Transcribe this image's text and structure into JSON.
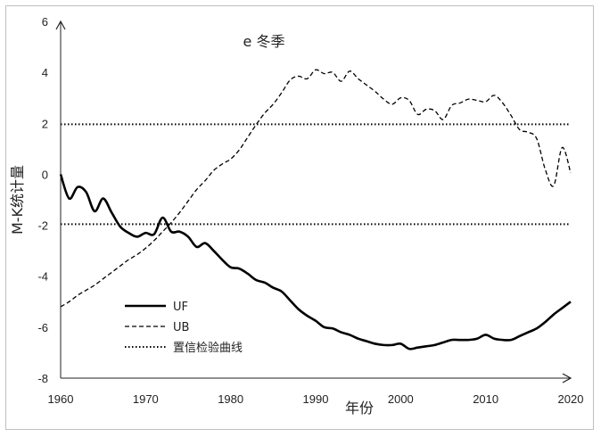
{
  "chart_data": {
    "type": "line",
    "title": "e 冬季",
    "xlabel": "年份",
    "ylabel": "M-K统计量",
    "xlim": [
      1960,
      2020
    ],
    "ylim": [
      -8,
      6
    ],
    "x_ticks": [
      "1960",
      "1970",
      "1980",
      "1990",
      "2000",
      "2010",
      "2020"
    ],
    "y_ticks": [
      "-8",
      "-6",
      "-4",
      "-2",
      "0",
      "2",
      "4",
      "6"
    ],
    "grid": false,
    "legend_position": "bottom-left",
    "series": [
      {
        "name": "UF",
        "style": "solid",
        "points": [
          [
            1960,
            0
          ],
          [
            1961,
            -0.95
          ],
          [
            1962,
            -0.5
          ],
          [
            1963,
            -0.7
          ],
          [
            1964,
            -1.45
          ],
          [
            1965,
            -0.95
          ],
          [
            1966,
            -1.5
          ],
          [
            1967,
            -2.05
          ],
          [
            1968,
            -2.3
          ],
          [
            1969,
            -2.45
          ],
          [
            1970,
            -2.3
          ],
          [
            1971,
            -2.35
          ],
          [
            1972,
            -1.7
          ],
          [
            1973,
            -2.25
          ],
          [
            1974,
            -2.25
          ],
          [
            1975,
            -2.45
          ],
          [
            1976,
            -2.85
          ],
          [
            1977,
            -2.7
          ],
          [
            1978,
            -3.0
          ],
          [
            1979,
            -3.35
          ],
          [
            1980,
            -3.65
          ],
          [
            1981,
            -3.7
          ],
          [
            1982,
            -3.9
          ],
          [
            1983,
            -4.15
          ],
          [
            1984,
            -4.25
          ],
          [
            1985,
            -4.45
          ],
          [
            1986,
            -4.6
          ],
          [
            1987,
            -4.95
          ],
          [
            1988,
            -5.3
          ],
          [
            1989,
            -5.55
          ],
          [
            1990,
            -5.75
          ],
          [
            1991,
            -6.0
          ],
          [
            1992,
            -6.05
          ],
          [
            1993,
            -6.2
          ],
          [
            1994,
            -6.3
          ],
          [
            1995,
            -6.45
          ],
          [
            1996,
            -6.55
          ],
          [
            1997,
            -6.65
          ],
          [
            1998,
            -6.7
          ],
          [
            1999,
            -6.7
          ],
          [
            2000,
            -6.65
          ],
          [
            2001,
            -6.85
          ],
          [
            2002,
            -6.8
          ],
          [
            2003,
            -6.75
          ],
          [
            2004,
            -6.7
          ],
          [
            2005,
            -6.6
          ],
          [
            2006,
            -6.5
          ],
          [
            2007,
            -6.5
          ],
          [
            2008,
            -6.5
          ],
          [
            2009,
            -6.45
          ],
          [
            2010,
            -6.3
          ],
          [
            2011,
            -6.45
          ],
          [
            2012,
            -6.5
          ],
          [
            2013,
            -6.5
          ],
          [
            2014,
            -6.35
          ],
          [
            2015,
            -6.2
          ],
          [
            2016,
            -6.05
          ],
          [
            2017,
            -5.8
          ],
          [
            2018,
            -5.5
          ],
          [
            2019,
            -5.25
          ],
          [
            2020,
            -5.0
          ]
        ]
      },
      {
        "name": "UB",
        "style": "dashed",
        "points": [
          [
            1960,
            -5.2
          ],
          [
            1961,
            -5.0
          ],
          [
            1962,
            -4.75
          ],
          [
            1963,
            -4.55
          ],
          [
            1964,
            -4.35
          ],
          [
            1965,
            -4.1
          ],
          [
            1966,
            -3.85
          ],
          [
            1967,
            -3.6
          ],
          [
            1968,
            -3.35
          ],
          [
            1969,
            -3.15
          ],
          [
            1970,
            -2.9
          ],
          [
            1971,
            -2.6
          ],
          [
            1972,
            -2.25
          ],
          [
            1973,
            -1.9
          ],
          [
            1974,
            -1.5
          ],
          [
            1975,
            -1.05
          ],
          [
            1976,
            -0.6
          ],
          [
            1977,
            -0.25
          ],
          [
            1978,
            0.15
          ],
          [
            1979,
            0.4
          ],
          [
            1980,
            0.6
          ],
          [
            1981,
            0.95
          ],
          [
            1982,
            1.45
          ],
          [
            1983,
            1.95
          ],
          [
            1984,
            2.4
          ],
          [
            1985,
            2.75
          ],
          [
            1986,
            3.2
          ],
          [
            1987,
            3.7
          ],
          [
            1988,
            3.85
          ],
          [
            1989,
            3.75
          ],
          [
            1990,
            4.1
          ],
          [
            1991,
            3.95
          ],
          [
            1992,
            4.0
          ],
          [
            1993,
            3.65
          ],
          [
            1994,
            4.05
          ],
          [
            1995,
            3.75
          ],
          [
            1996,
            3.5
          ],
          [
            1997,
            3.25
          ],
          [
            1998,
            2.95
          ],
          [
            1999,
            2.75
          ],
          [
            2000,
            3.0
          ],
          [
            2001,
            2.9
          ],
          [
            2002,
            2.35
          ],
          [
            2003,
            2.55
          ],
          [
            2004,
            2.5
          ],
          [
            2005,
            2.15
          ],
          [
            2006,
            2.7
          ],
          [
            2007,
            2.8
          ],
          [
            2008,
            2.95
          ],
          [
            2009,
            2.9
          ],
          [
            2010,
            2.85
          ],
          [
            2011,
            3.1
          ],
          [
            2012,
            2.8
          ],
          [
            2013,
            2.3
          ],
          [
            2014,
            1.75
          ],
          [
            2015,
            1.65
          ],
          [
            2016,
            1.4
          ],
          [
            2017,
            0.2
          ],
          [
            2018,
            -0.45
          ],
          [
            2019,
            1.05
          ],
          [
            2020,
            0.05
          ]
        ]
      },
      {
        "name": "置信检验曲线",
        "style": "dotted",
        "levels": [
          1.96,
          -1.96
        ]
      }
    ]
  }
}
